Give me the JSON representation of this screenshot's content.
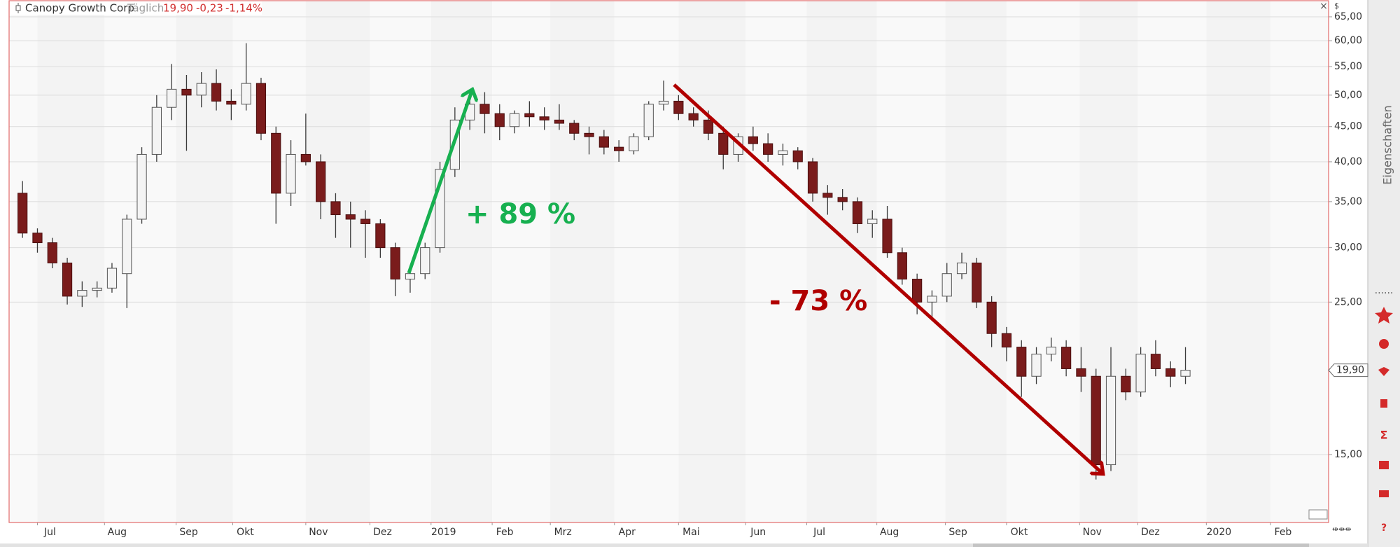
{
  "header": {
    "name": "Canopy Growth Corp",
    "interval": "Täglich",
    "price": "19,90",
    "change": "-0,23",
    "change_pct": "-1,14%"
  },
  "sidebar": {
    "title": "Eigenschaften"
  },
  "chart_data": {
    "type": "candlestick",
    "currency": "$",
    "log_scale": true,
    "grid": true,
    "up_color": "#f4f4f4",
    "down_color": "#7a1c1c",
    "annotations": [
      {
        "text": "+ 89 %",
        "color": "#17b050"
      },
      {
        "text": "- 73 %",
        "color": "#b00000"
      }
    ],
    "xlim": [
      -1.9,
      86.6
    ],
    "xticks": [
      {
        "value": 0,
        "label": "Jul"
      },
      {
        "value": 4.5,
        "label": "Aug"
      },
      {
        "value": 9.3,
        "label": "Sep"
      },
      {
        "value": 13.1,
        "label": "Okt"
      },
      {
        "value": 18,
        "label": "Nov"
      },
      {
        "value": 22.3,
        "label": "Dez"
      },
      {
        "value": 26.4,
        "label": "2019"
      },
      {
        "value": 30.5,
        "label": "Feb"
      },
      {
        "value": 34.4,
        "label": "Mrz"
      },
      {
        "value": 38.7,
        "label": "Apr"
      },
      {
        "value": 43,
        "label": "Mai"
      },
      {
        "value": 47.5,
        "label": "Jun"
      },
      {
        "value": 51.6,
        "label": "Jul"
      },
      {
        "value": 56.3,
        "label": "Aug"
      },
      {
        "value": 60.9,
        "label": "Sep"
      },
      {
        "value": 65,
        "label": "Okt"
      },
      {
        "value": 69.9,
        "label": "Nov"
      },
      {
        "value": 73.8,
        "label": "Dez"
      },
      {
        "value": 78.4,
        "label": "2020"
      },
      {
        "value": 82.7,
        "label": "Feb"
      }
    ],
    "ylim": [
      11.95,
      68.6
    ],
    "yticks": [
      {
        "value": 15,
        "label": "15,00"
      },
      {
        "value": 25,
        "label": "25,00"
      },
      {
        "value": 30,
        "label": "30,00"
      },
      {
        "value": 35,
        "label": "35,00"
      },
      {
        "value": 40,
        "label": "40,00"
      },
      {
        "value": 45,
        "label": "45,00"
      },
      {
        "value": 50,
        "label": "50,00"
      },
      {
        "value": 55,
        "label": "55,00"
      },
      {
        "value": 60,
        "label": "60,00"
      },
      {
        "value": 65,
        "label": "65,00"
      }
    ],
    "x": [
      -1,
      0,
      1,
      2,
      3,
      4,
      5,
      6,
      7,
      8,
      9,
      10,
      11,
      12,
      13,
      14,
      15,
      16,
      17,
      18,
      19,
      20,
      21,
      22,
      23,
      24,
      25,
      26,
      27,
      28,
      29,
      30,
      31,
      32,
      33,
      34,
      35,
      36,
      37,
      38,
      39,
      40,
      41,
      42,
      43,
      44,
      45,
      46,
      47,
      48,
      49,
      50,
      51,
      52,
      53,
      54,
      55,
      56,
      57,
      58,
      59,
      60,
      61,
      62,
      63,
      64,
      65,
      66,
      67,
      68,
      69,
      70,
      71,
      72,
      73,
      74,
      75,
      76,
      77
    ],
    "candles": [
      [
        36,
        37.5,
        31,
        31.5
      ],
      [
        31.5,
        32,
        29.5,
        30.5
      ],
      [
        30.5,
        31,
        28,
        28.5
      ],
      [
        28.5,
        29,
        24.8,
        25.5
      ],
      [
        25.5,
        26.8,
        24.6,
        26
      ],
      [
        26,
        26.8,
        25.4,
        26.2
      ],
      [
        26.2,
        28.5,
        25.8,
        28
      ],
      [
        27.5,
        33.5,
        24.5,
        33
      ],
      [
        33,
        42,
        32.5,
        41
      ],
      [
        41,
        50,
        40,
        48
      ],
      [
        48,
        55.5,
        46,
        51
      ],
      [
        51,
        53.5,
        41.5,
        50
      ],
      [
        50,
        54,
        48,
        52
      ],
      [
        52,
        54.5,
        47.5,
        49
      ],
      [
        49,
        51,
        46,
        48.5
      ],
      [
        48.5,
        59.5,
        47.5,
        52
      ],
      [
        52,
        53,
        43,
        44
      ],
      [
        44,
        45,
        32.5,
        36
      ],
      [
        36,
        43,
        34.5,
        41
      ],
      [
        41,
        47,
        39.5,
        40
      ],
      [
        40,
        41,
        33,
        35
      ],
      [
        35,
        36,
        31,
        33.5
      ],
      [
        33.5,
        35,
        30,
        33
      ],
      [
        33,
        34,
        29,
        32.5
      ],
      [
        32.5,
        33,
        29,
        30
      ],
      [
        30,
        30.5,
        25.5,
        27
      ],
      [
        27,
        28,
        25.8,
        27.5
      ],
      [
        27.5,
        30.5,
        27,
        30
      ],
      [
        30,
        40,
        29.5,
        39
      ],
      [
        39,
        48,
        38,
        46
      ],
      [
        46,
        51,
        44.5,
        48.5
      ],
      [
        48.5,
        50.5,
        44,
        47
      ],
      [
        47,
        48.5,
        43,
        45
      ],
      [
        45,
        47.5,
        44,
        47
      ],
      [
        47,
        49,
        45,
        46.5
      ],
      [
        46.5,
        48,
        44.5,
        46
      ],
      [
        46,
        48.5,
        44.5,
        45.5
      ],
      [
        45.5,
        46,
        43,
        44
      ],
      [
        44,
        45,
        41,
        43.5
      ],
      [
        43.5,
        44.5,
        41,
        42
      ],
      [
        42,
        43,
        40,
        41.5
      ],
      [
        41.5,
        44,
        41,
        43.5
      ],
      [
        43.5,
        49,
        43,
        48.5
      ],
      [
        48.5,
        52.5,
        47.5,
        49
      ],
      [
        49,
        50,
        46,
        47
      ],
      [
        47,
        48,
        45,
        46
      ],
      [
        46,
        47.5,
        43,
        44
      ],
      [
        44,
        45,
        39,
        41
      ],
      [
        41,
        44,
        40,
        43.5
      ],
      [
        43.5,
        45,
        41.5,
        42.5
      ],
      [
        42.5,
        44,
        40,
        41
      ],
      [
        41,
        42.5,
        39.5,
        41.5
      ],
      [
        41.5,
        42,
        39,
        40
      ],
      [
        40,
        40.5,
        35,
        36
      ],
      [
        36,
        37,
        33.5,
        35.5
      ],
      [
        35.5,
        36.5,
        34,
        35
      ],
      [
        35,
        35.5,
        31.5,
        32.5
      ],
      [
        32.5,
        34,
        31,
        33
      ],
      [
        33,
        34.5,
        29,
        29.5
      ],
      [
        29.5,
        30,
        26.5,
        27
      ],
      [
        27,
        27.5,
        24,
        25
      ],
      [
        25,
        26,
        23.5,
        25.5
      ],
      [
        25.5,
        28.5,
        25,
        27.5
      ],
      [
        27.5,
        29.5,
        27,
        28.5
      ],
      [
        28.5,
        29,
        24.5,
        25
      ],
      [
        25,
        25.5,
        21.5,
        22.5
      ],
      [
        22.5,
        23,
        20.5,
        21.5
      ],
      [
        21.5,
        22,
        18.2,
        19.5
      ],
      [
        19.5,
        21.5,
        19,
        21
      ],
      [
        21,
        22.2,
        20.5,
        21.5
      ],
      [
        21.5,
        22,
        19.5,
        20
      ],
      [
        20,
        21.5,
        18.5,
        19.5
      ],
      [
        19.5,
        20,
        13.8,
        14.5
      ],
      [
        14.5,
        21.5,
        14.2,
        19.5
      ],
      [
        19.5,
        20,
        18,
        18.5
      ],
      [
        18.5,
        21.5,
        18.2,
        21
      ],
      [
        21,
        22,
        19.5,
        20
      ],
      [
        20,
        20.5,
        18.8,
        19.5
      ],
      [
        19.5,
        21.5,
        19,
        19.9
      ]
    ]
  }
}
